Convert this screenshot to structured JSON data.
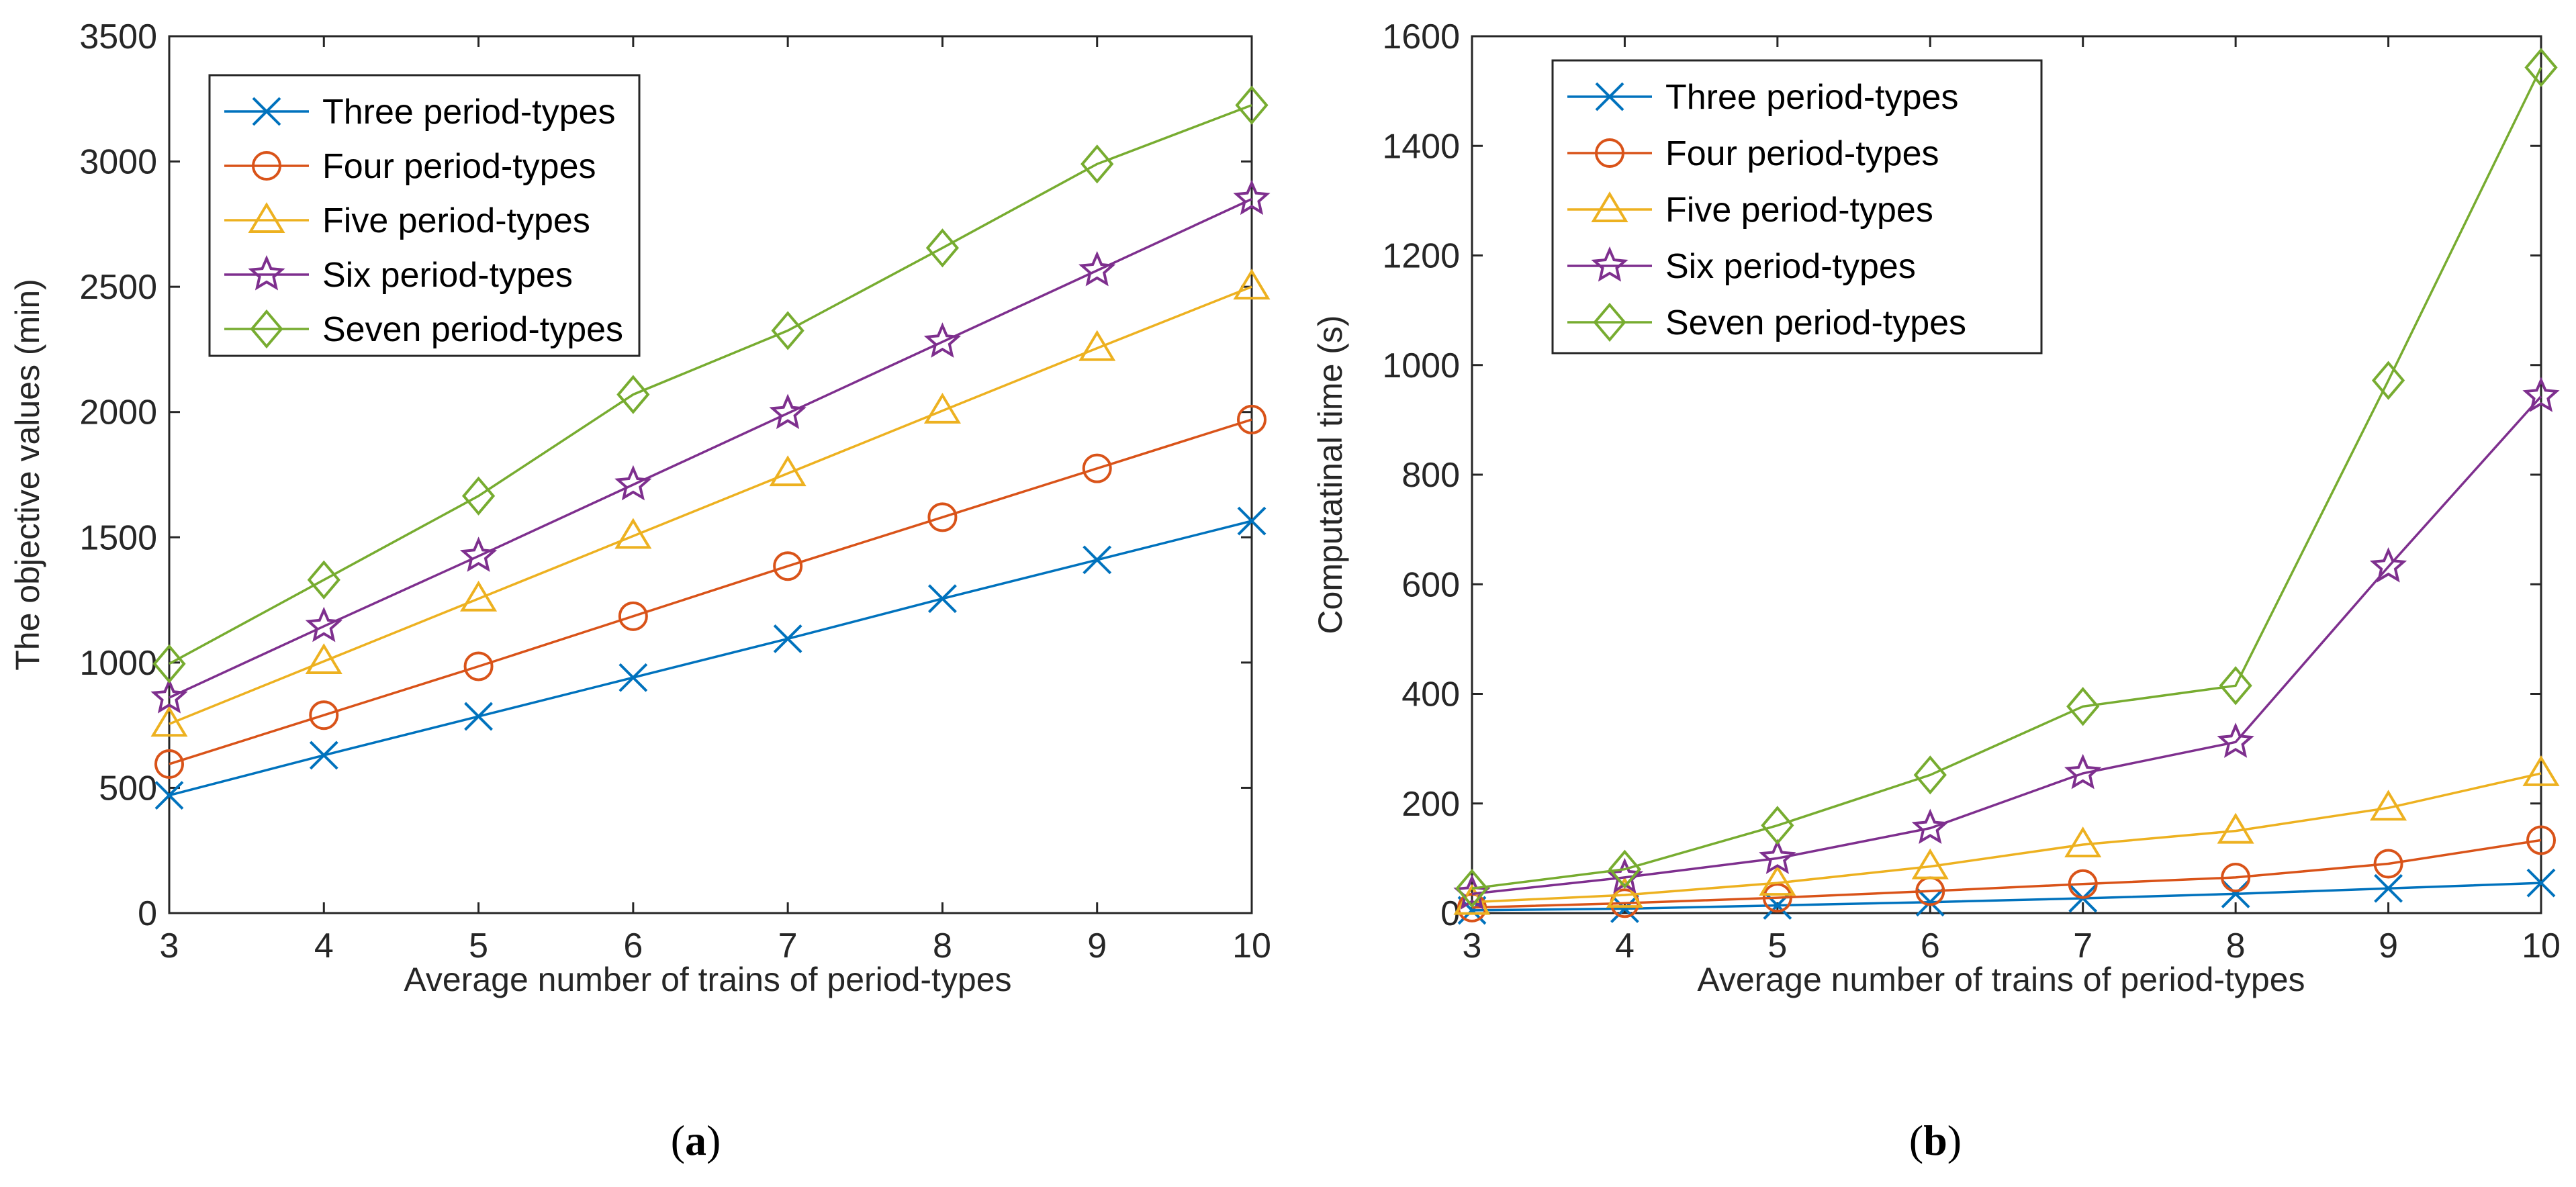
{
  "chart_data": [
    {
      "type": "line",
      "panel": "a",
      "caption": {
        "open": "(",
        "letter": "a",
        "close": ")"
      },
      "xlabel": "Average number of trains of period-types",
      "ylabel": "The objective values (min)",
      "xlim": [
        3,
        10
      ],
      "ylim": [
        0,
        3500
      ],
      "xticks": [
        3,
        4,
        5,
        6,
        7,
        8,
        9,
        10
      ],
      "yticks": [
        0,
        500,
        1000,
        1500,
        2000,
        2500,
        3000,
        3500
      ],
      "legend_position": "top-left",
      "x": [
        3,
        4,
        5,
        6,
        7,
        8,
        9,
        10
      ],
      "series": [
        {
          "name": "Three period-types",
          "color": "#0072BD",
          "marker": "x",
          "values": [
            470,
            630,
            785,
            940,
            1095,
            1255,
            1410,
            1565
          ]
        },
        {
          "name": "Four period-types",
          "color": "#D95319",
          "marker": "circle",
          "values": [
            595,
            790,
            985,
            1185,
            1385,
            1580,
            1775,
            1970
          ]
        },
        {
          "name": "Five period-types",
          "color": "#EDB120",
          "marker": "triangle",
          "values": [
            755,
            1005,
            1255,
            1505,
            1755,
            2005,
            2255,
            2500
          ]
        },
        {
          "name": "Six period-types",
          "color": "#7E2F8E",
          "marker": "star",
          "values": [
            860,
            1145,
            1425,
            1710,
            1995,
            2280,
            2565,
            2850
          ]
        },
        {
          "name": "Seven period-types",
          "color": "#77AC30",
          "marker": "diamond",
          "values": [
            995,
            1330,
            1665,
            2070,
            2325,
            2655,
            2990,
            3225
          ]
        }
      ]
    },
    {
      "type": "line",
      "panel": "b",
      "caption": {
        "open": "(",
        "letter": "b",
        "close": ")"
      },
      "xlabel": "Average  number of trains of period-types",
      "ylabel": "Computatinal time (s)",
      "xlim": [
        3,
        10
      ],
      "ylim": [
        0,
        1600
      ],
      "xticks": [
        3,
        4,
        5,
        6,
        7,
        8,
        9,
        10
      ],
      "yticks": [
        0,
        200,
        400,
        600,
        800,
        1000,
        1200,
        1400,
        1600
      ],
      "legend_position": "top-left",
      "x": [
        3,
        4,
        5,
        6,
        7,
        8,
        9,
        10
      ],
      "series": [
        {
          "name": "Three period-types",
          "color": "#0072BD",
          "marker": "x",
          "values": [
            5,
            8,
            14,
            20,
            27,
            35,
            45,
            55
          ]
        },
        {
          "name": "Four period-types",
          "color": "#D95319",
          "marker": "circle",
          "values": [
            10,
            18,
            28,
            40,
            53,
            65,
            90,
            133
          ]
        },
        {
          "name": "Five period-types",
          "color": "#EDB120",
          "marker": "triangle",
          "values": [
            20,
            33,
            55,
            85,
            125,
            150,
            192,
            255
          ]
        },
        {
          "name": "Six period-types",
          "color": "#7E2F8E",
          "marker": "star",
          "values": [
            35,
            65,
            100,
            155,
            255,
            312,
            632,
            943
          ]
        },
        {
          "name": "Seven period-types",
          "color": "#77AC30",
          "marker": "diamond",
          "values": [
            45,
            80,
            160,
            252,
            377,
            415,
            972,
            1543
          ]
        }
      ]
    }
  ]
}
